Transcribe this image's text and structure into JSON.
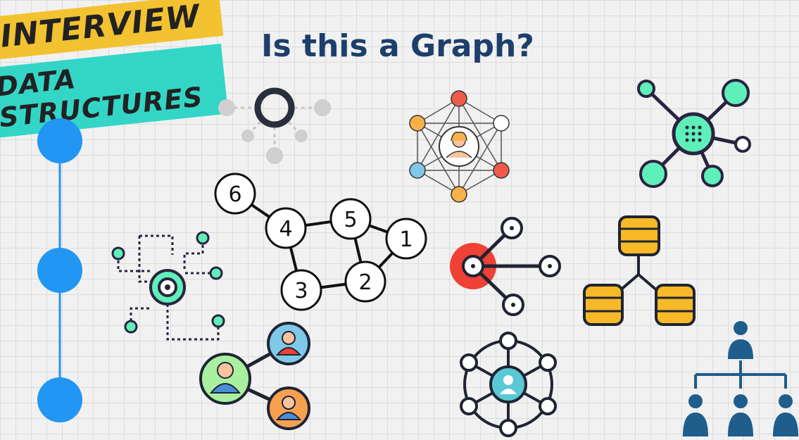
{
  "banner": {
    "line1": "INTERVIEW",
    "line2": "DATA STRUCTURES"
  },
  "title": "Is this a Graph?",
  "numbered_graph": {
    "nodes": [
      "6",
      "4",
      "5",
      "1",
      "3",
      "2"
    ]
  },
  "colors": {
    "title": "#1c3f6b",
    "banner_yellow": "#f2c230",
    "banner_teal": "#33d6c6",
    "linked_list_blue": "#2196f3",
    "mint": "#5ef0b8",
    "red": "#ef4136",
    "gold": "#f7b928",
    "navy": "#1e5d8c"
  },
  "icons": [
    "linked-list-icon",
    "grey-hub-icon",
    "social-network-icon",
    "mint-network-icon",
    "circuit-hub-icon",
    "numbered-graph-icon",
    "red-tree-icon",
    "database-tree-icon",
    "people-network-icon",
    "ring-network-icon",
    "org-chart-icon"
  ]
}
